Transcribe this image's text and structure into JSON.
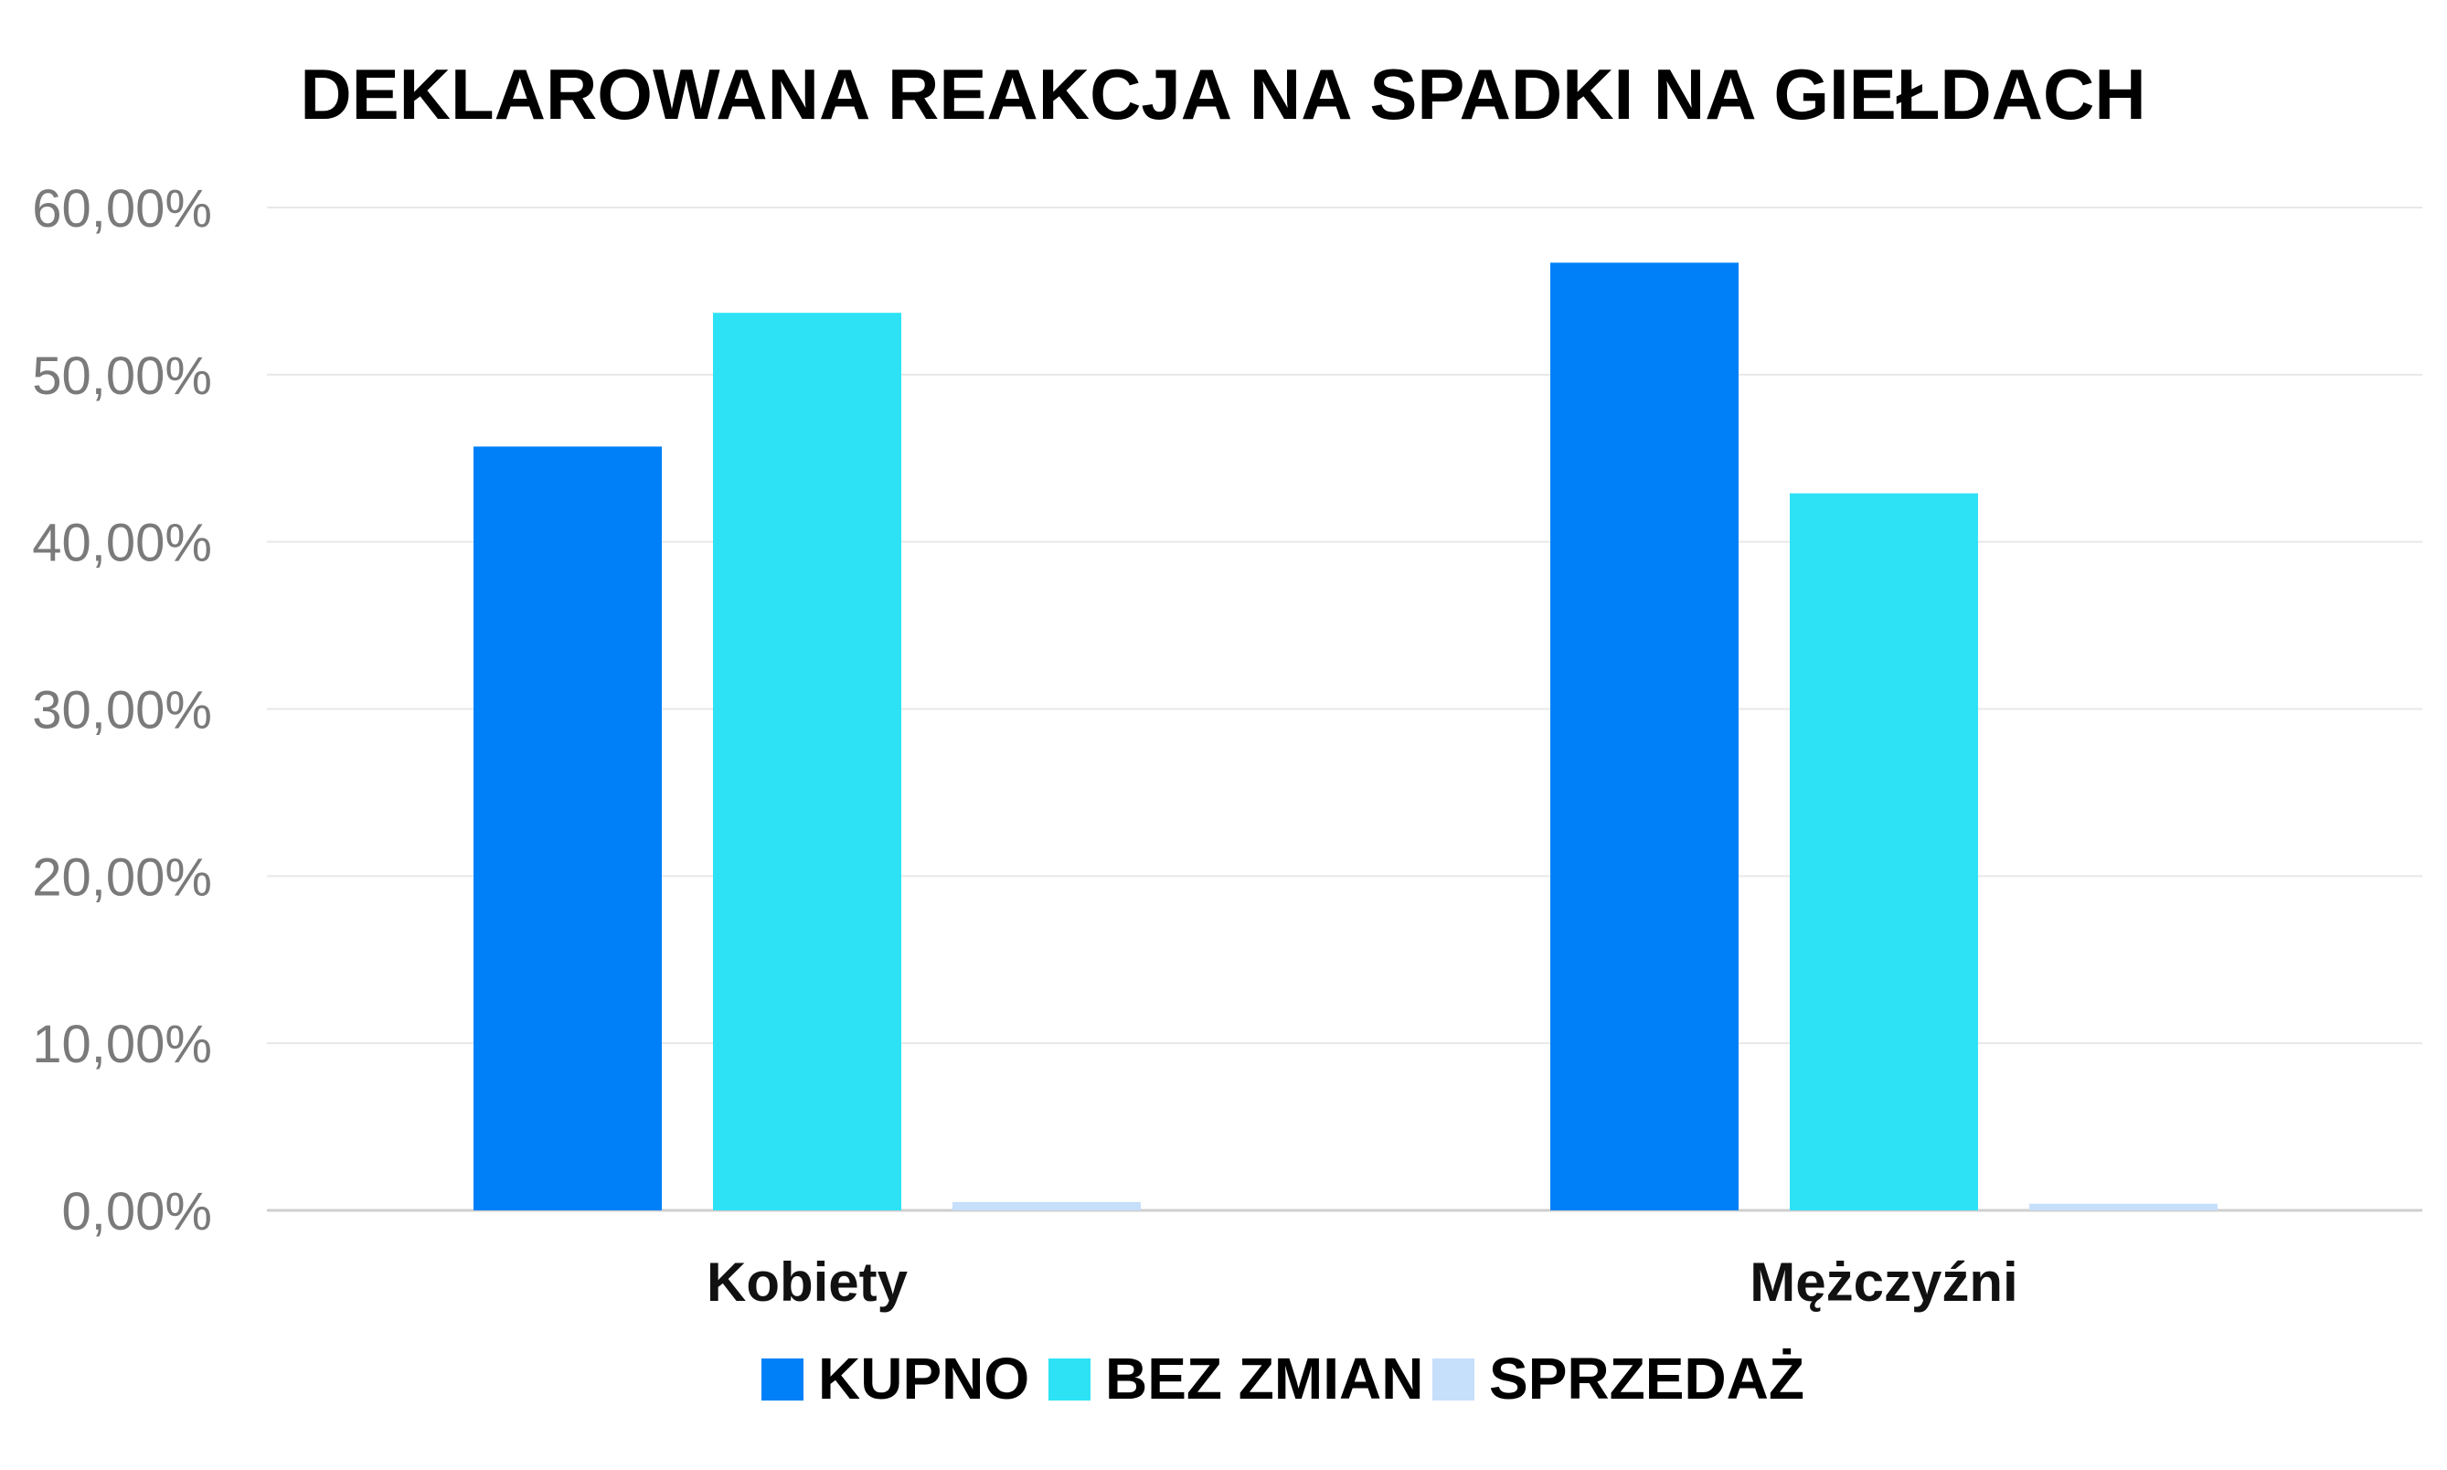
{
  "chart_data": {
    "type": "bar",
    "title": "DEKLAROWANA REAKCJA NA SPADKI NA GIEŁDACH",
    "categories": [
      "Kobiety",
      "Mężczyźni"
    ],
    "series": [
      {
        "name": "KUPNO",
        "color": "#0080f8",
        "values": [
          45.7,
          56.7
        ]
      },
      {
        "name": "BEZ ZMIAN",
        "color": "#2ee2f6",
        "values": [
          53.7,
          42.9
        ]
      },
      {
        "name": "SPRZEDAŻ",
        "color": "#c6dffb",
        "values": [
          0.5,
          0.4
        ]
      }
    ],
    "ylim": [
      0,
      60
    ],
    "yticks": [
      "0,00%",
      "10,00%",
      "20,00%",
      "30,00%",
      "40,00%",
      "50,00%",
      "60,00%"
    ],
    "xlabel": "",
    "ylabel": "",
    "grid": true,
    "legend_position": "bottom",
    "colors": {
      "grid": "#e8e8e8",
      "axis": "#cfcfcf"
    }
  }
}
